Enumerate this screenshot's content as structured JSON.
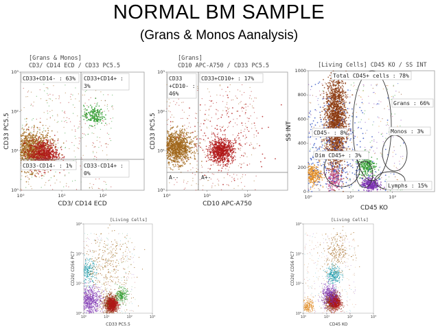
{
  "page": {
    "title": "NORMAL BM  SAMPLE",
    "subtitle": "(Grans & Monos Aanalysis)"
  },
  "colors": {
    "grans": "#8b3a10",
    "grans_alt": "#a0661a",
    "monos": "#2a9a2a",
    "cd33pos": "#b01818",
    "lymphs": "#7a2fb0",
    "lymphs_alt": "#3050c0",
    "dim": "#e08a20",
    "nk": "#1a9aaa",
    "misc": "#c0488a"
  },
  "chart_data": [
    {
      "type": "scatter",
      "scale": "log",
      "gate_label": "[Grans & Monos]",
      "title": "CD3/ CD14 ECD / CD33 PC5.5",
      "xlabel": "CD3/ CD14 ECD",
      "ylabel": "CD33 PC5.5",
      "xlim": [
        1,
        1000
      ],
      "ylim": [
        1,
        1000
      ],
      "x_ticks": [
        "10⁰",
        "10¹",
        "10²"
      ],
      "y_ticks": [
        "10⁰",
        "10¹",
        "10²",
        "10³"
      ],
      "quadrant_split": {
        "x": 10,
        "y": 2
      },
      "quadrants": [
        {
          "label": "CD33+CD14- : 63%",
          "value": 63
        },
        {
          "label": "CD33+CD14+ :",
          "label2": "3%",
          "value": 3
        },
        {
          "label": "CD33-CD14- : 1%",
          "value": 1
        },
        {
          "label": "CD33-CD14+ :",
          "label2": "0%",
          "value": 0
        }
      ],
      "populations": [
        {
          "color": "#a0661a",
          "x": 1.8,
          "y": 10,
          "spread": 0.25,
          "n": 1200
        },
        {
          "color": "#b01818",
          "x": 3.5,
          "y": 8,
          "spread": 0.18,
          "n": 700
        },
        {
          "color": "#2a9a2a",
          "x": 60,
          "y": 80,
          "spread": 0.12,
          "n": 180
        }
      ]
    },
    {
      "type": "scatter",
      "scale": "log",
      "gate_label": "[Grans]",
      "title": "CD10 APC-A750 / CD33 PC5.5",
      "xlabel": "CD10 APC-A750",
      "ylabel": "CD33 PC5.5",
      "xlim": [
        1,
        1000
      ],
      "ylim": [
        1,
        1000
      ],
      "x_ticks": [
        "10⁰",
        "10¹",
        "10²"
      ],
      "y_ticks": [
        "10⁰",
        "10¹",
        "10²",
        "10³"
      ],
      "quadrant_split": {
        "x": 2.8,
        "y": 2
      },
      "quadrants": [
        {
          "label": "CD33",
          "label2": "+CD10- :",
          "label3": "46%",
          "value": 46
        },
        {
          "label": "CD33+CD10+ : 17%",
          "value": 17
        },
        {
          "label": "A--"
        },
        {
          "label": "A+-"
        }
      ],
      "populations": [
        {
          "color": "#a0661a",
          "x": 1.7,
          "y": 12,
          "spread": 0.2,
          "n": 1100
        },
        {
          "color": "#b01818",
          "x": 22,
          "y": 10,
          "spread": 0.15,
          "n": 700
        },
        {
          "color": "#b01818",
          "x": 40,
          "y": 20,
          "spread": 0.5,
          "n": 120
        }
      ]
    },
    {
      "type": "scatter",
      "scale": "log-linear",
      "gate_label": "[Living Cells]",
      "title": "CD45 KO / SS INT",
      "xlabel": "CD45 KO",
      "ylabel": "SS INT",
      "xlim": [
        1,
        1000
      ],
      "ylim": [
        0,
        1000
      ],
      "x_ticks": [
        "10⁰",
        "10¹",
        "10²"
      ],
      "y_ticks": [
        "0",
        "200",
        "400",
        "600",
        "800",
        "1000"
      ],
      "regions": [
        {
          "label": "Total CD45+ cells : 78%",
          "value": 78
        },
        {
          "label": "Grans : 66%",
          "value": 66
        },
        {
          "label": "Monos : 3%",
          "value": 3
        },
        {
          "label": "CD45- : 8%",
          "value": 8
        },
        {
          "label": "Dim CD45+ : 3%",
          "value": 3
        },
        {
          "label": "Lymphs : 15%",
          "value": 15
        }
      ],
      "populations": [
        {
          "color": "#8b3a10",
          "x": 4.5,
          "y": 560,
          "sx": 0.12,
          "sy": 200,
          "n": 2000
        },
        {
          "color": "#2a9a2a",
          "x": 25,
          "y": 220,
          "sx": 0.1,
          "sy": 50,
          "n": 220
        },
        {
          "color": "#e08a20",
          "x": 1.2,
          "y": 140,
          "sx": 0.12,
          "sy": 40,
          "n": 300
        },
        {
          "color": "#7a2fb0",
          "x": 30,
          "y": 60,
          "sx": 0.1,
          "sy": 25,
          "n": 300
        },
        {
          "color": "#c0488a",
          "x": 4,
          "y": 110,
          "sx": 0.08,
          "sy": 50,
          "n": 160
        },
        {
          "color": "#3050c0",
          "x": 3,
          "y": 250,
          "sx": 0.6,
          "sy": 250,
          "n": 500
        }
      ]
    },
    {
      "type": "scatter",
      "scale": "log",
      "gate_label": "[Living Cells]",
      "xlabel": "CD33 PC5.5",
      "ylabel": "CD20/ CD56 PC7",
      "xlim": [
        1,
        1000
      ],
      "ylim": [
        1,
        1000
      ],
      "x_ticks": [
        "10⁰",
        "10¹",
        "10²",
        "10³"
      ],
      "y_ticks": [
        "10⁰",
        "10¹",
        "10²",
        "10³"
      ],
      "populations": [
        {
          "color": "#7a2fb0",
          "x": 1.8,
          "y": 2.5,
          "spread": 0.25,
          "n": 700
        },
        {
          "color": "#1a9aaa",
          "x": 1.4,
          "y": 25,
          "spread": 0.2,
          "n": 250
        },
        {
          "color": "#8b3a10",
          "x": 15,
          "y": 2,
          "spread": 0.15,
          "n": 700
        },
        {
          "color": "#b01818",
          "x": 18,
          "y": 2,
          "spread": 0.12,
          "n": 500
        },
        {
          "color": "#2a9a2a",
          "x": 45,
          "y": 4,
          "spread": 0.12,
          "n": 200
        },
        {
          "color": "#a0661a",
          "x": 10,
          "y": 40,
          "spread": 0.6,
          "n": 300
        }
      ]
    },
    {
      "type": "scatter",
      "scale": "log",
      "gate_label": "[Living Cells]",
      "xlabel": "CD45 KO",
      "ylabel": "CD20/ CD56 PC7",
      "xlim": [
        1,
        1000
      ],
      "ylim": [
        1,
        1000
      ],
      "x_ticks": [
        "10⁰",
        "10¹",
        "10²",
        "10³"
      ],
      "y_ticks": [
        "10⁰",
        "10¹",
        "10²",
        "10³"
      ],
      "populations": [
        {
          "color": "#e08a20",
          "x": 1.6,
          "y": 1.8,
          "spread": 0.12,
          "n": 180
        },
        {
          "color": "#8b3a10",
          "x": 18,
          "y": 2.5,
          "spread": 0.15,
          "n": 700
        },
        {
          "color": "#b01818",
          "x": 22,
          "y": 2.3,
          "spread": 0.12,
          "n": 500
        },
        {
          "color": "#1a9aaa",
          "x": 20,
          "y": 20,
          "spread": 0.15,
          "n": 250
        },
        {
          "color": "#7a2fb0",
          "x": 14,
          "y": 4,
          "spread": 0.18,
          "n": 350
        },
        {
          "color": "#a0661a",
          "x": 28,
          "y": 120,
          "spread": 0.3,
          "n": 200
        }
      ]
    }
  ]
}
